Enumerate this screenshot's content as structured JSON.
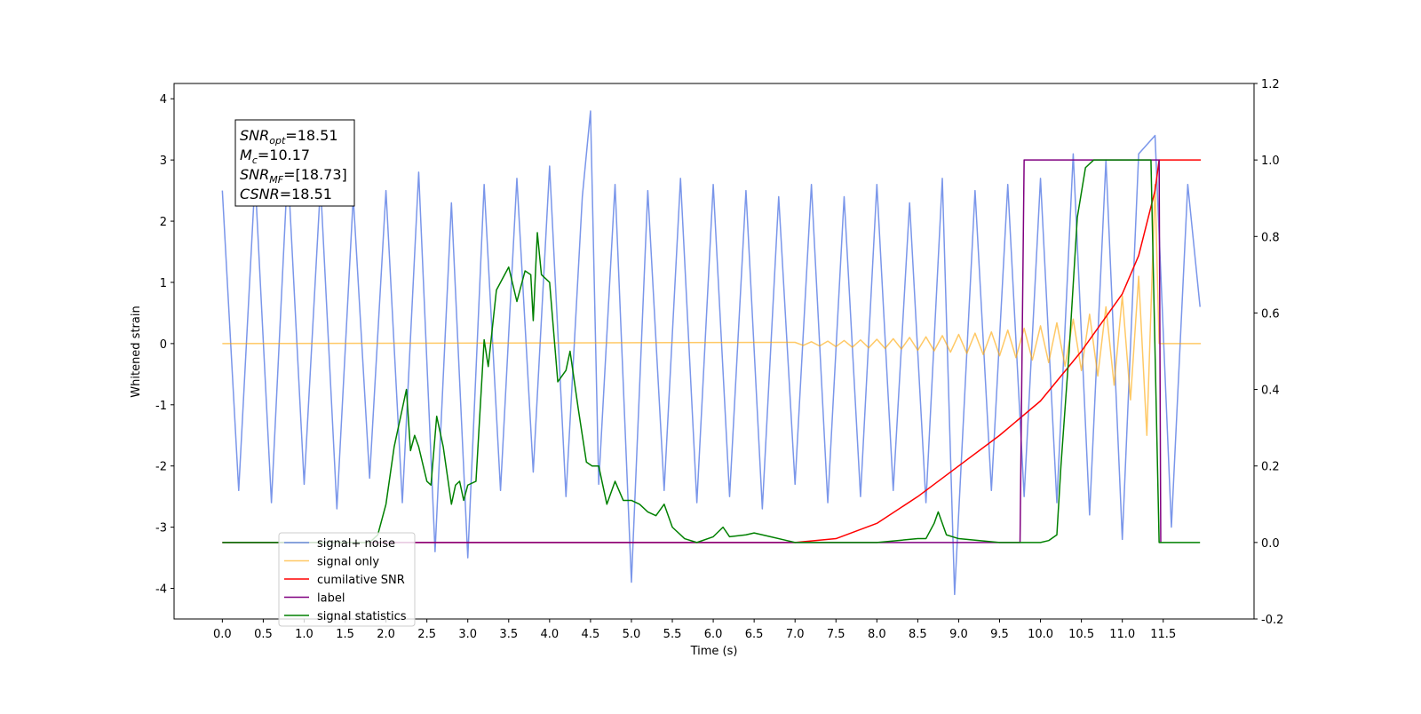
{
  "chart_data": {
    "type": "line",
    "xlabel": "Time (s)",
    "ylabel": "Whitened strain",
    "xlim": [
      -0.59,
      12.61
    ],
    "ylim": [
      -4.5,
      4.25
    ],
    "y2lim": [
      -0.2,
      1.2
    ],
    "xticks": [
      {
        "value": 0,
        "label": "0.0"
      },
      0.5,
      {
        "value": 1,
        "label": "1.0"
      },
      1.5,
      {
        "value": 2,
        "label": "2.0"
      },
      2.5,
      {
        "value": 3,
        "label": "3.0"
      },
      3.5,
      {
        "value": 4,
        "label": "4.0"
      },
      4.5,
      {
        "value": 5,
        "label": "5.0"
      },
      5.5,
      {
        "value": 6,
        "label": "6.0"
      },
      6.5,
      {
        "value": 7,
        "label": "7.0"
      },
      7.5,
      {
        "value": 8,
        "label": "8.0"
      },
      8.5,
      {
        "value": 9,
        "label": "9.0"
      },
      9.5,
      {
        "value": 10,
        "label": "10.0"
      },
      10.5,
      {
        "value": 11,
        "label": "11.0"
      },
      11.5
    ],
    "yticks": [
      -4,
      -3,
      -2,
      -1,
      0,
      1,
      2,
      3,
      4
    ],
    "y2ticks": [
      -0.2,
      {
        "value": 0,
        "label": "0.0"
      },
      0.2,
      0.4,
      0.6,
      0.8,
      {
        "value": 1,
        "label": "1.0"
      },
      1.2
    ],
    "annotation": [
      {
        "main": "SNR",
        "sub": "opt",
        "rest": "=18.51"
      },
      {
        "main": "M",
        "sub": "c",
        "rest": "=10.17"
      },
      {
        "main": "SNR",
        "sub": "MF",
        "rest": "=[18.73]"
      },
      {
        "main": "CSNR",
        "sub": "",
        "rest": "=18.51"
      }
    ],
    "series": [
      {
        "name": "signal+ noise",
        "color": "#4169e1",
        "axis": "y",
        "x": [
          0,
          0.2,
          0.4,
          0.6,
          0.8,
          1.0,
          1.2,
          1.4,
          1.6,
          1.8,
          2.0,
          2.2,
          2.4,
          2.6,
          2.8,
          3.0,
          3.2,
          3.4,
          3.6,
          3.8,
          4.0,
          4.2,
          4.4,
          4.5,
          4.6,
          4.8,
          5.0,
          5.2,
          5.4,
          5.6,
          5.8,
          6.0,
          6.2,
          6.4,
          6.6,
          6.8,
          7.0,
          7.2,
          7.4,
          7.6,
          7.8,
          8.0,
          8.2,
          8.4,
          8.6,
          8.8,
          8.95,
          9.2,
          9.4,
          9.6,
          9.8,
          10.0,
          10.2,
          10.4,
          10.6,
          10.8,
          11.0,
          11.2,
          11.4,
          11.6,
          11.8,
          11.95
        ],
        "values": [
          2.5,
          -2.4,
          2.7,
          -2.6,
          2.9,
          -2.3,
          2.6,
          -2.7,
          2.4,
          -2.2,
          2.5,
          -2.6,
          2.8,
          -3.4,
          2.3,
          -3.5,
          2.6,
          -2.4,
          2.7,
          -2.1,
          2.9,
          -2.5,
          2.4,
          3.8,
          -2.3,
          2.6,
          -3.9,
          2.5,
          -2.4,
          2.7,
          -2.6,
          2.6,
          -2.5,
          2.5,
          -2.7,
          2.4,
          -2.3,
          2.6,
          -2.6,
          2.4,
          -2.5,
          2.6,
          -2.4,
          2.3,
          -2.6,
          2.7,
          -4.1,
          2.5,
          -2.4,
          2.6,
          -2.5,
          2.7,
          -2.6,
          3.1,
          -2.8,
          3.0,
          -3.2,
          3.1,
          3.4,
          -3.0,
          2.6,
          0.6
        ]
      },
      {
        "name": "signal only",
        "color": "#ffa500",
        "axis": "y",
        "x": [
          0,
          7.0,
          7.1,
          7.2,
          7.3,
          7.4,
          7.5,
          7.6,
          7.7,
          7.8,
          7.9,
          8.0,
          8.1,
          8.2,
          8.3,
          8.4,
          8.5,
          8.6,
          8.7,
          8.8,
          8.9,
          9.0,
          9.1,
          9.2,
          9.3,
          9.4,
          9.5,
          9.6,
          9.7,
          9.8,
          9.9,
          10.0,
          10.1,
          10.2,
          10.3,
          10.4,
          10.5,
          10.6,
          10.7,
          10.8,
          10.9,
          11.0,
          11.1,
          11.2,
          11.3,
          11.4,
          11.45,
          11.96
        ],
        "values": [
          0,
          0.02,
          -0.03,
          0.03,
          -0.04,
          0.04,
          -0.05,
          0.05,
          -0.06,
          0.06,
          -0.07,
          0.07,
          -0.08,
          0.08,
          -0.09,
          0.1,
          -0.11,
          0.11,
          -0.12,
          0.13,
          -0.14,
          0.15,
          -0.16,
          0.17,
          -0.18,
          0.19,
          -0.2,
          0.22,
          -0.23,
          0.25,
          -0.27,
          0.29,
          -0.31,
          0.34,
          -0.37,
          0.4,
          -0.44,
          0.48,
          -0.53,
          0.6,
          -0.68,
          0.78,
          -0.92,
          1.1,
          -1.5,
          2.6,
          0,
          0
        ]
      },
      {
        "name": "cumilative SNR",
        "color": "#ff0000",
        "axis": "y2",
        "x": [
          0,
          7.0,
          7.5,
          8.0,
          8.5,
          9.0,
          9.5,
          10.0,
          10.5,
          11.0,
          11.2,
          11.4,
          11.45,
          11.96
        ],
        "values": [
          0,
          0,
          0.01,
          0.05,
          0.12,
          0.2,
          0.28,
          0.37,
          0.5,
          0.65,
          0.75,
          0.92,
          1.0,
          1.0
        ]
      },
      {
        "name": "label",
        "color": "#800080",
        "axis": "y2",
        "x": [
          0,
          9.75,
          9.8,
          11.45,
          11.47
        ],
        "values": [
          0,
          0,
          1,
          1,
          0
        ]
      },
      {
        "name": "signal statistics",
        "color": "#008000",
        "axis": "y2",
        "x": [
          0,
          1.8,
          1.9,
          2.0,
          2.1,
          2.2,
          2.25,
          2.3,
          2.35,
          2.4,
          2.5,
          2.55,
          2.62,
          2.7,
          2.8,
          2.85,
          2.9,
          2.95,
          3.0,
          3.1,
          3.2,
          3.25,
          3.35,
          3.45,
          3.5,
          3.6,
          3.7,
          3.77,
          3.8,
          3.85,
          3.9,
          4.0,
          4.1,
          4.2,
          4.25,
          4.35,
          4.45,
          4.52,
          4.6,
          4.7,
          4.8,
          4.9,
          5.0,
          5.1,
          5.2,
          5.3,
          5.4,
          5.5,
          5.65,
          5.8,
          6.0,
          6.12,
          6.2,
          6.4,
          6.5,
          6.7,
          6.9,
          7.0,
          8.0,
          8.5,
          8.6,
          8.7,
          8.75,
          8.85,
          9.0,
          9.5,
          10.0,
          10.1,
          10.2,
          10.25,
          10.35,
          10.45,
          10.55,
          10.65,
          11.35,
          11.45,
          11.95
        ],
        "values": [
          0,
          0,
          0.02,
          0.1,
          0.25,
          0.35,
          0.4,
          0.24,
          0.28,
          0.25,
          0.16,
          0.15,
          0.33,
          0.25,
          0.1,
          0.15,
          0.16,
          0.11,
          0.15,
          0.16,
          0.53,
          0.46,
          0.66,
          0.7,
          0.72,
          0.63,
          0.71,
          0.7,
          0.58,
          0.81,
          0.7,
          0.68,
          0.42,
          0.45,
          0.5,
          0.35,
          0.21,
          0.2,
          0.2,
          0.1,
          0.16,
          0.11,
          0.11,
          0.1,
          0.08,
          0.07,
          0.1,
          0.04,
          0.01,
          0,
          0.015,
          0.04,
          0.015,
          0.02,
          0.025,
          0.015,
          0.005,
          0,
          0,
          0.01,
          0.01,
          0.05,
          0.08,
          0.02,
          0.01,
          0,
          0,
          0.005,
          0.02,
          0.2,
          0.5,
          0.85,
          0.98,
          1.0,
          1.0,
          0,
          0
        ]
      }
    ]
  }
}
